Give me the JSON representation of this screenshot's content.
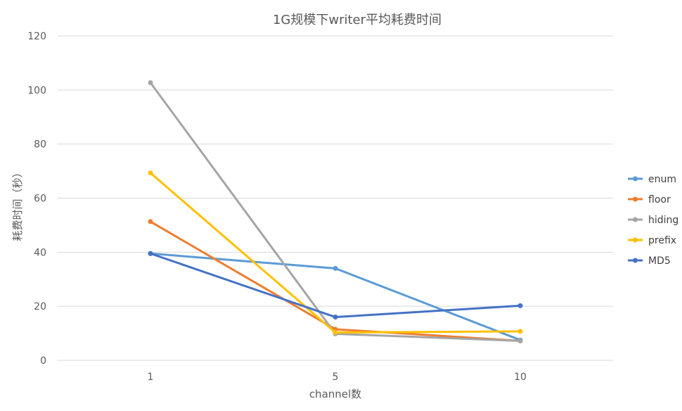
{
  "chart_data": {
    "type": "line",
    "title": "1G规模下writer平均耗费时间",
    "xlabel": "channel数",
    "ylabel": "耗费时间（秒）",
    "categories": [
      "1",
      "5",
      "10"
    ],
    "ylim": [
      0,
      120
    ],
    "yticks": [
      0,
      20,
      40,
      60,
      80,
      100,
      120
    ],
    "grid": true,
    "legend_position": "right",
    "series": [
      {
        "name": "enum",
        "color": "#5B9BD5",
        "values": [
          39.5,
          34.0,
          7.5
        ]
      },
      {
        "name": "floor",
        "color": "#ED7D31",
        "values": [
          51.3,
          11.5,
          7.2
        ]
      },
      {
        "name": "hiding",
        "color": "#A5A5A5",
        "values": [
          102.7,
          9.8,
          7.2
        ]
      },
      {
        "name": "prefix",
        "color": "#FFC000",
        "values": [
          69.3,
          10.3,
          10.7
        ]
      },
      {
        "name": "MD5",
        "color": "#4472C4",
        "values": [
          39.5,
          16.0,
          20.2
        ]
      }
    ]
  }
}
